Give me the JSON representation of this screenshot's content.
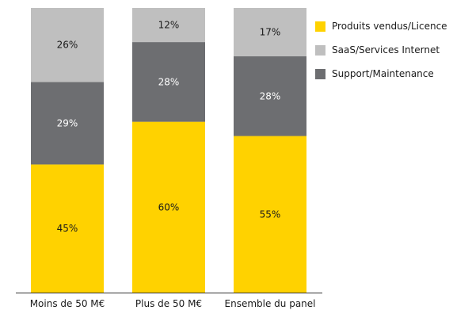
{
  "chart_data": {
    "type": "bar",
    "stacked": true,
    "categories": [
      "Moins de 50 M€",
      "Plus de 50 M€",
      "Ensemble du panel"
    ],
    "series": [
      {
        "name": "Produits vendus/Licence",
        "color": "#FFD200",
        "values": [
          45,
          60,
          55
        ],
        "labels": [
          "45%",
          "60%",
          "55%"
        ]
      },
      {
        "name": "Support/Maintenance",
        "color": "#6D6E71",
        "values": [
          29,
          28,
          28
        ],
        "labels": [
          "29%",
          "28%",
          "28%"
        ]
      },
      {
        "name": "SaaS/Services Internet",
        "color": "#BFBFBF",
        "values": [
          26,
          12,
          17
        ],
        "labels": [
          "26%",
          "12%",
          "17%"
        ]
      }
    ],
    "ylim": [
      0,
      100
    ],
    "grid": false,
    "legend_position": "right",
    "legend": [
      {
        "name": "Produits vendus/Licence",
        "color": "#FFD200"
      },
      {
        "name": "SaaS/Services Internet",
        "color": "#BFBFBF"
      },
      {
        "name": "Support/Maintenance",
        "color": "#6D6E71"
      }
    ],
    "label_colors": {
      "Produits vendus/Licence": "#1a1a1a",
      "Support/Maintenance": "#ffffff",
      "SaaS/Services Internet": "#1a1a1a"
    },
    "axis_color": "#333333"
  }
}
